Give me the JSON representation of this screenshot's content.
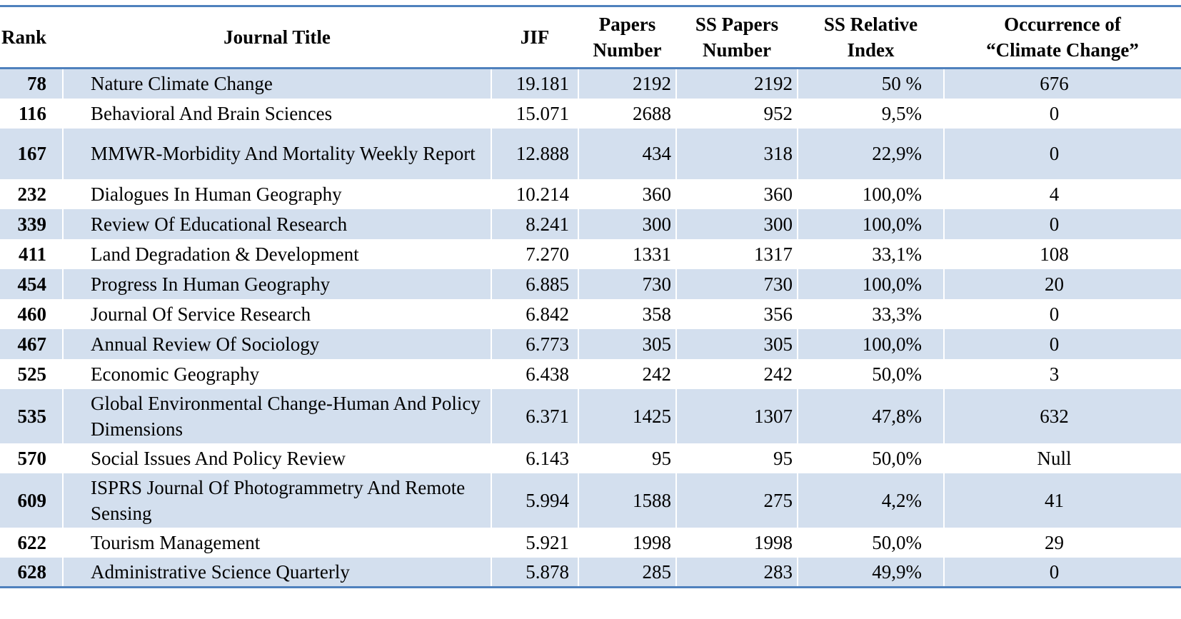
{
  "table": {
    "headers": {
      "rank": "Rank",
      "title": "Journal Title",
      "jif": "JIF",
      "papers_line1": "Papers",
      "papers_line2": "Number",
      "sspapers_line1": "SS Papers",
      "sspapers_line2": "Number",
      "ssrel_line1": "SS Relative",
      "ssrel_line2": "Index",
      "occ_line1": "Occurrence of",
      "occ_line2": "“Climate Change”"
    },
    "rows": [
      {
        "rank": "78",
        "title": "Nature Climate Change",
        "jif": "19.181",
        "papers": "2192",
        "ss_papers": "2192",
        "ss_relative": "50 %",
        "occurrence": "676"
      },
      {
        "rank": "116",
        "title": "Behavioral And Brain Sciences",
        "jif": "15.071",
        "papers": "2688",
        "ss_papers": "952",
        "ss_relative": "9,5%",
        "occurrence": "0"
      },
      {
        "rank": "167",
        "title": "MMWR-Morbidity And Mortality Weekly Report",
        "jif": "12.888",
        "papers": "434",
        "ss_papers": "318",
        "ss_relative": "22,9%",
        "occurrence": "0"
      },
      {
        "rank": "232",
        "title": "Dialogues In Human Geography",
        "jif": "10.214",
        "papers": "360",
        "ss_papers": "360",
        "ss_relative": "100,0%",
        "occurrence": "4"
      },
      {
        "rank": "339",
        "title": "Review Of Educational Research",
        "jif": "8.241",
        "papers": "300",
        "ss_papers": "300",
        "ss_relative": "100,0%",
        "occurrence": "0"
      },
      {
        "rank": "411",
        "title": "Land Degradation & Development",
        "jif": "7.270",
        "papers": "1331",
        "ss_papers": "1317",
        "ss_relative": "33,1%",
        "occurrence": "108"
      },
      {
        "rank": "454",
        "title": "Progress In Human Geography",
        "jif": "6.885",
        "papers": "730",
        "ss_papers": "730",
        "ss_relative": "100,0%",
        "occurrence": "20"
      },
      {
        "rank": "460",
        "title": "Journal Of Service Research",
        "jif": "6.842",
        "papers": "358",
        "ss_papers": "356",
        "ss_relative": "33,3%",
        "occurrence": "0"
      },
      {
        "rank": "467",
        "title": "Annual Review Of Sociology",
        "jif": "6.773",
        "papers": "305",
        "ss_papers": "305",
        "ss_relative": "100,0%",
        "occurrence": "0"
      },
      {
        "rank": "525",
        "title": "Economic Geography",
        "jif": "6.438",
        "papers": "242",
        "ss_papers": "242",
        "ss_relative": "50,0%",
        "occurrence": "3"
      },
      {
        "rank": "535",
        "title": "Global Environmental Change-Human And Policy Dimensions",
        "jif": "6.371",
        "papers": "1425",
        "ss_papers": "1307",
        "ss_relative": "47,8%",
        "occurrence": "632"
      },
      {
        "rank": "570",
        "title": "Social Issues And Policy Review",
        "jif": "6.143",
        "papers": "95",
        "ss_papers": "95",
        "ss_relative": "50,0%",
        "occurrence": "Null"
      },
      {
        "rank": "609",
        "title": "ISPRS Journal Of Photogrammetry And Remote Sensing",
        "jif": "5.994",
        "papers": "1588",
        "ss_papers": "275",
        "ss_relative": "4,2%",
        "occurrence": "41"
      },
      {
        "rank": "622",
        "title": "Tourism Management",
        "jif": "5.921",
        "papers": "1998",
        "ss_papers": "1998",
        "ss_relative": "50,0%",
        "occurrence": "29"
      },
      {
        "rank": "628",
        "title": "Administrative Science Quarterly",
        "jif": "5.878",
        "papers": "285",
        "ss_papers": "283",
        "ss_relative": "49,9%",
        "occurrence": "0"
      }
    ]
  }
}
